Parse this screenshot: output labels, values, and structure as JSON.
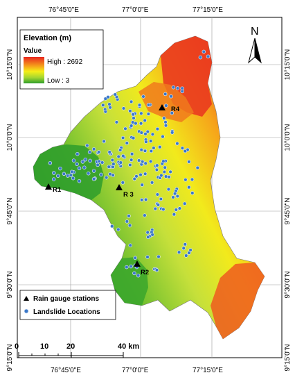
{
  "map": {
    "top_ticks": [
      "76°45'0\"E",
      "77°0'0\"E",
      "77°15'0\"E"
    ],
    "bottom_ticks": [
      "76°45'0\"E",
      "77°0'0\"E",
      "77°15'0\"E"
    ],
    "left_ticks": [
      "10°15'0\"N",
      "10°0'0\"N",
      "9°45'0\"N",
      "9°30'0\"N",
      "9°15'0\"N"
    ],
    "right_ticks": [
      "10°15'0\"N",
      "10°0'0\"N",
      "9°45'0\"N",
      "9°30'0\"N",
      "9°15'0\"N"
    ]
  },
  "legend": {
    "title": "Elevation (m)",
    "value_label": "Value",
    "high_label": "High : 2692",
    "low_label": "Low : 3",
    "colors": {
      "high": "#e8261f",
      "mid": "#f5ee17",
      "low": "#2e9e2b"
    }
  },
  "symbols": {
    "rain_gauge_label": "Rain gauge stations",
    "landslide_label": "Landslide Locations",
    "rain_gauge_color": "#000000",
    "landslide_color": "#3a78c9"
  },
  "stations": [
    {
      "label": "R1"
    },
    {
      "label": "R 3"
    },
    {
      "label": "R4"
    },
    {
      "label": "R2"
    }
  ],
  "north_arrow": {
    "label": "N"
  },
  "scale_bar": {
    "labels": [
      "0",
      "10",
      "20",
      "40 km"
    ]
  }
}
